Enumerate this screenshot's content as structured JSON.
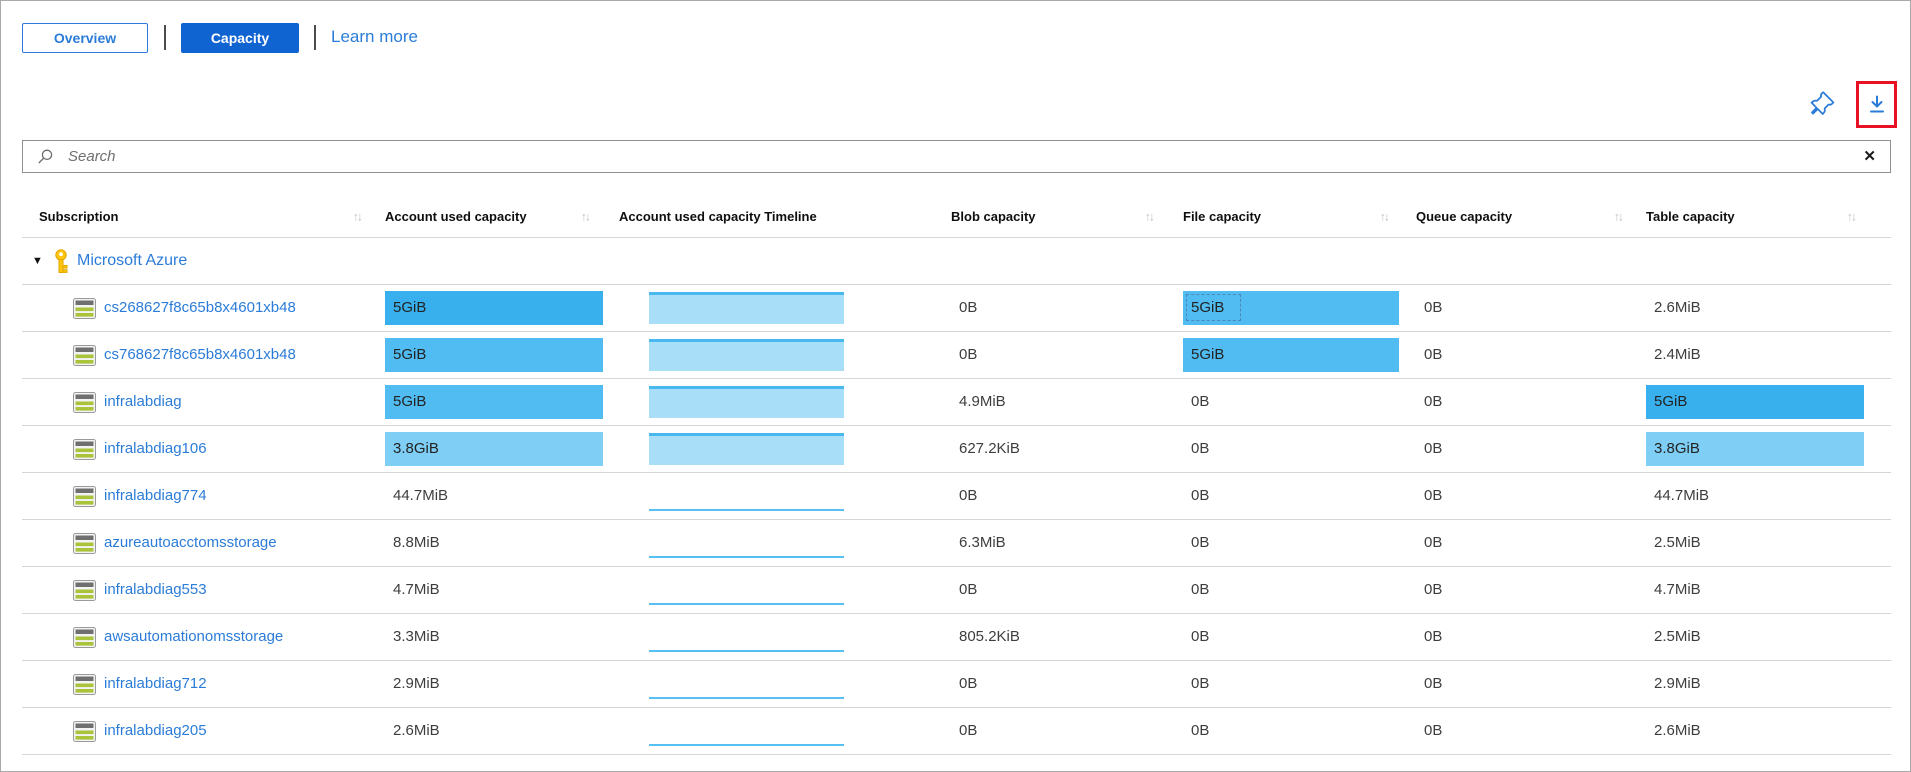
{
  "view_tabs": {
    "overview": "Overview",
    "capacity": "Capacity",
    "learn_more": "Learn more"
  },
  "search": {
    "placeholder": "Search"
  },
  "icons": {
    "sort": "↑↓",
    "collapse": "▼",
    "clear": "✕",
    "pin": "pin-icon",
    "download": "download-icon",
    "search": "search-icon",
    "key": "key-icon",
    "storage_account": "storage-account-icon"
  },
  "colors": {
    "accent_blue": "#2b7cd8",
    "capacity_tab_bg": "#1064d2",
    "highlight_red": "#e81123",
    "bar_dark": "#38b0ee",
    "bar_mid": "#50bcf1",
    "bar_light": "#7ecef5",
    "timeline_fill": "#a9def8",
    "timeline_edge": "#49b8ee"
  },
  "table": {
    "columns": [
      {
        "label": "Subscription",
        "sortable": true
      },
      {
        "label": "Account used capacity",
        "sortable": true
      },
      {
        "label": "Account used capacity Timeline",
        "sortable": false
      },
      {
        "label": "Blob capacity",
        "sortable": true
      },
      {
        "label": "File capacity",
        "sortable": true
      },
      {
        "label": "Queue capacity",
        "sortable": true
      },
      {
        "label": "Table capacity",
        "sortable": true
      }
    ],
    "group_label": "Microsoft Azure",
    "rows": [
      {
        "name": "cs268627f8c65b8x4601xb48",
        "account": "5GiB",
        "account_bar": "dark",
        "timeline": "bar",
        "blob": "0B",
        "file": "5GiB",
        "file_bar": "mid",
        "file_focus": true,
        "queue": "0B",
        "table": "2.6MiB"
      },
      {
        "name": "cs768627f8c65b8x4601xb48",
        "account": "5GiB",
        "account_bar": "mid",
        "timeline": "bar",
        "blob": "0B",
        "file": "5GiB",
        "file_bar": "mid",
        "queue": "0B",
        "table": "2.4MiB"
      },
      {
        "name": "infralabdiag",
        "account": "5GiB",
        "account_bar": "mid",
        "timeline": "bar",
        "blob": "4.9MiB",
        "file": "0B",
        "queue": "0B",
        "table": "5GiB",
        "table_bar": "dark"
      },
      {
        "name": "infralabdiag106",
        "account": "3.8GiB",
        "account_bar": "light",
        "timeline": "bar",
        "blob": "627.2KiB",
        "file": "0B",
        "queue": "0B",
        "table": "3.8GiB",
        "table_bar": "light"
      },
      {
        "name": "infralabdiag774",
        "account": "44.7MiB",
        "timeline": "line",
        "blob": "0B",
        "file": "0B",
        "queue": "0B",
        "table": "44.7MiB"
      },
      {
        "name": "azureautoacctomsstorage",
        "account": "8.8MiB",
        "timeline": "line",
        "blob": "6.3MiB",
        "file": "0B",
        "queue": "0B",
        "table": "2.5MiB"
      },
      {
        "name": "infralabdiag553",
        "account": "4.7MiB",
        "timeline": "line",
        "blob": "0B",
        "file": "0B",
        "queue": "0B",
        "table": "4.7MiB"
      },
      {
        "name": "awsautomationomsstorage",
        "account": "3.3MiB",
        "timeline": "line",
        "blob": "805.2KiB",
        "file": "0B",
        "queue": "0B",
        "table": "2.5MiB"
      },
      {
        "name": "infralabdiag712",
        "account": "2.9MiB",
        "timeline": "line",
        "blob": "0B",
        "file": "0B",
        "queue": "0B",
        "table": "2.9MiB"
      },
      {
        "name": "infralabdiag205",
        "account": "2.6MiB",
        "timeline": "line",
        "blob": "0B",
        "file": "0B",
        "queue": "0B",
        "table": "2.6MiB"
      }
    ]
  }
}
